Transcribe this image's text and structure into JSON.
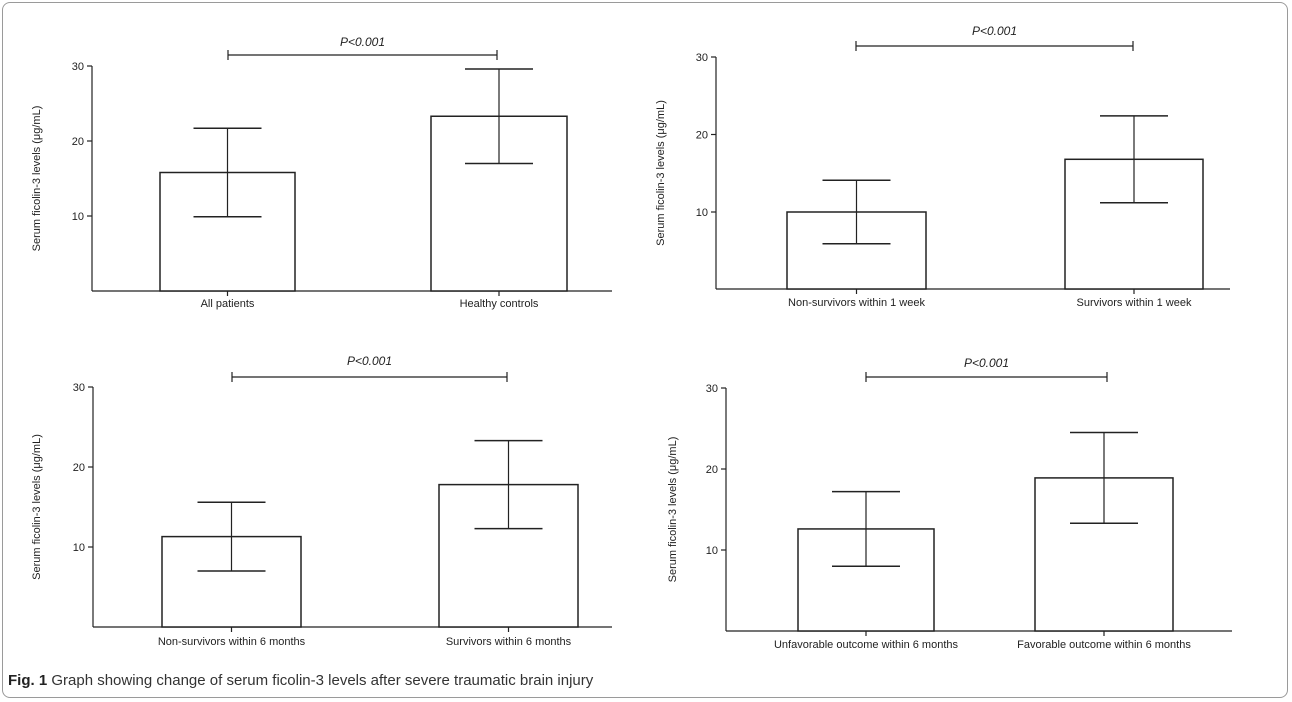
{
  "chart_data": [
    {
      "type": "bar",
      "categories": [
        "All patients",
        "Healthy controls"
      ],
      "values": [
        15.8,
        23.3
      ],
      "error": [
        5.9,
        6.3
      ],
      "ylabel": "Serum ficolin-3 levels (μg/mL)",
      "yticks": [
        10,
        20,
        30
      ],
      "ylim": [
        0,
        30
      ],
      "significance": {
        "label": "P<0.001",
        "between": [
          0,
          1
        ]
      }
    },
    {
      "type": "bar",
      "categories": [
        "Non-survivors within 1 week",
        "Survivors within 1 week"
      ],
      "values": [
        10.0,
        16.8
      ],
      "error": [
        4.1,
        5.6
      ],
      "ylabel": "Serum ficolin-3 levels (μg/mL)",
      "yticks": [
        10,
        20,
        30
      ],
      "ylim": [
        0,
        30
      ],
      "significance": {
        "label": "P<0.001",
        "between": [
          0,
          1
        ]
      }
    },
    {
      "type": "bar",
      "categories": [
        "Non-survivors within 6 months",
        "Survivors within 6 months"
      ],
      "values": [
        11.3,
        17.8
      ],
      "error": [
        4.3,
        5.5
      ],
      "ylabel": "Serum ficolin-3 levels (μg/mL)",
      "yticks": [
        10,
        20,
        30
      ],
      "ylim": [
        0,
        30
      ],
      "significance": {
        "label": "P<0.001",
        "between": [
          0,
          1
        ]
      }
    },
    {
      "type": "bar",
      "categories": [
        "Unfavorable outcome within 6 months",
        "Favorable outcome within 6 months"
      ],
      "values": [
        12.6,
        18.9
      ],
      "error": [
        4.6,
        5.6
      ],
      "ylabel": "Serum ficolin-3 levels (μg/mL)",
      "yticks": [
        10,
        20,
        30
      ],
      "ylim": [
        0,
        30
      ],
      "significance": {
        "label": "P<0.001",
        "between": [
          0,
          1
        ]
      }
    }
  ],
  "caption": {
    "label": "Fig. 1",
    "text": "Graph showing change of serum ficolin-3 levels after severe traumatic brain injury"
  },
  "colors": {
    "bar_fill": "#ffffff",
    "stroke": "#222222"
  }
}
